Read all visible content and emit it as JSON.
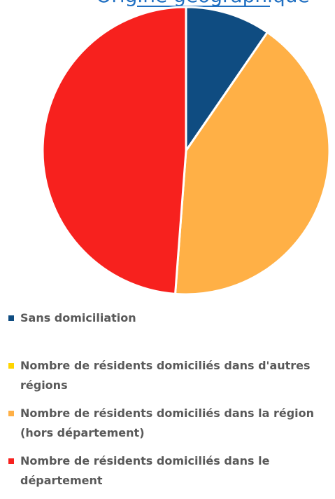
{
  "chart_data": {
    "type": "pie",
    "title": "Origine géographique",
    "categories": [
      "Sans domiciliation",
      "Nombre de résidents domiciliés dans d'autres régions",
      "Nombre de résidents domiciliés dans la région (hors département)",
      "Nombre de résidents domiciliés dans le département"
    ],
    "values": [
      9.6,
      0,
      41.6,
      48.8
    ],
    "colors": [
      "#0f4c81",
      "#ffd500",
      "#ffb046",
      "#f7211e"
    ]
  }
}
